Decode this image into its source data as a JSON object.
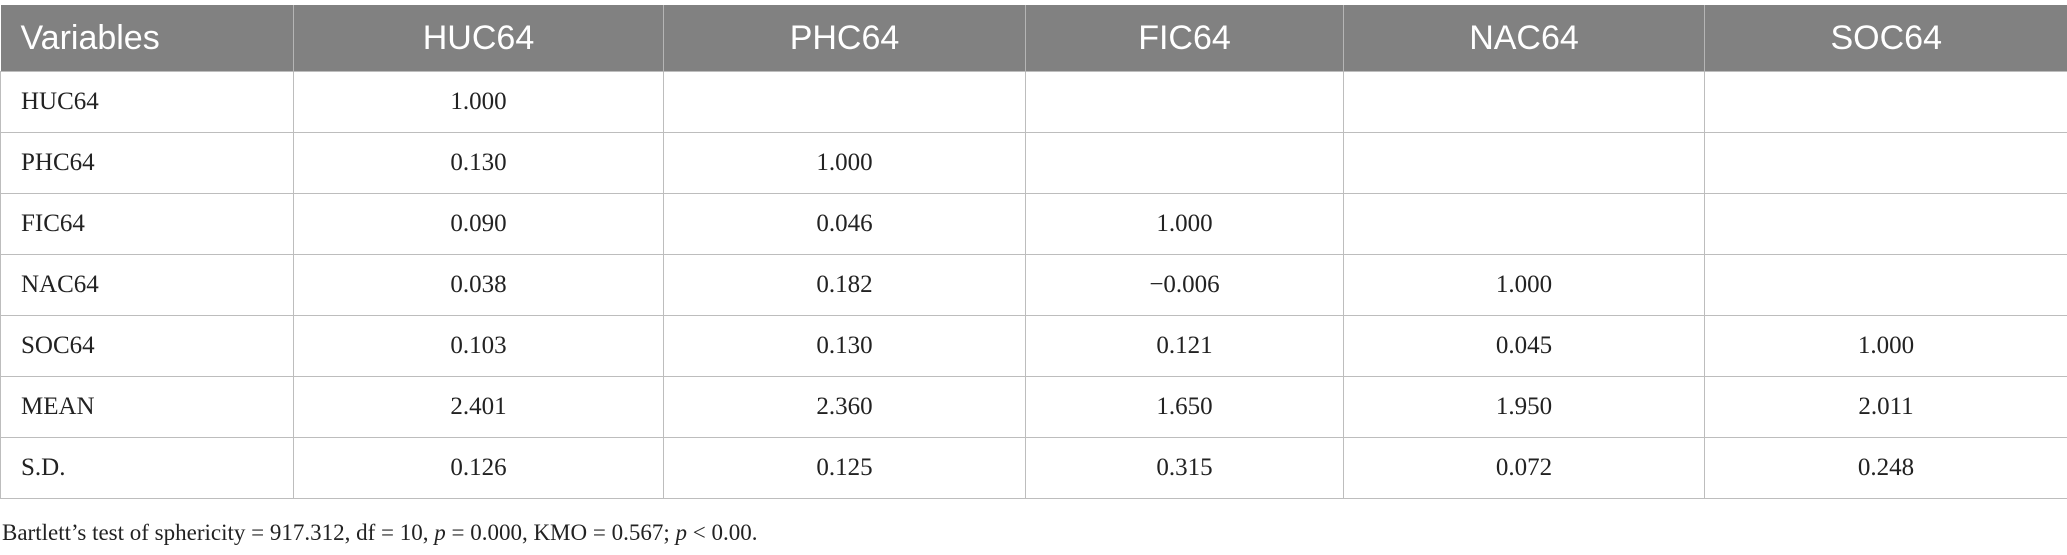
{
  "table": {
    "header": [
      "Variables",
      "HUC64",
      "PHC64",
      "FIC64",
      "NAC64",
      "SOC64"
    ],
    "rows": [
      [
        "HUC64",
        "1.000",
        null,
        null,
        null,
        null
      ],
      [
        "PHC64",
        "0.130",
        "1.000",
        null,
        null,
        null
      ],
      [
        "FIC64",
        "0.090",
        "0.046",
        "1.000",
        null,
        null
      ],
      [
        "NAC64",
        "0.038",
        "0.182",
        "−0.006",
        "1.000",
        null
      ],
      [
        "SOC64",
        "0.103",
        "0.130",
        "0.121",
        "0.045",
        "1.000"
      ],
      [
        "MEAN",
        "2.401",
        "2.360",
        "1.650",
        "1.950",
        "2.011"
      ],
      [
        "S.D.",
        "0.126",
        "0.125",
        "0.315",
        "0.072",
        "0.248"
      ]
    ]
  },
  "footnote": [
    "Bartlett’s test of sphericity = 917.312, df = 10, ",
    "p",
    " = 0.000, KMO = 0.567; ",
    "p",
    " < 0.00."
  ]
}
